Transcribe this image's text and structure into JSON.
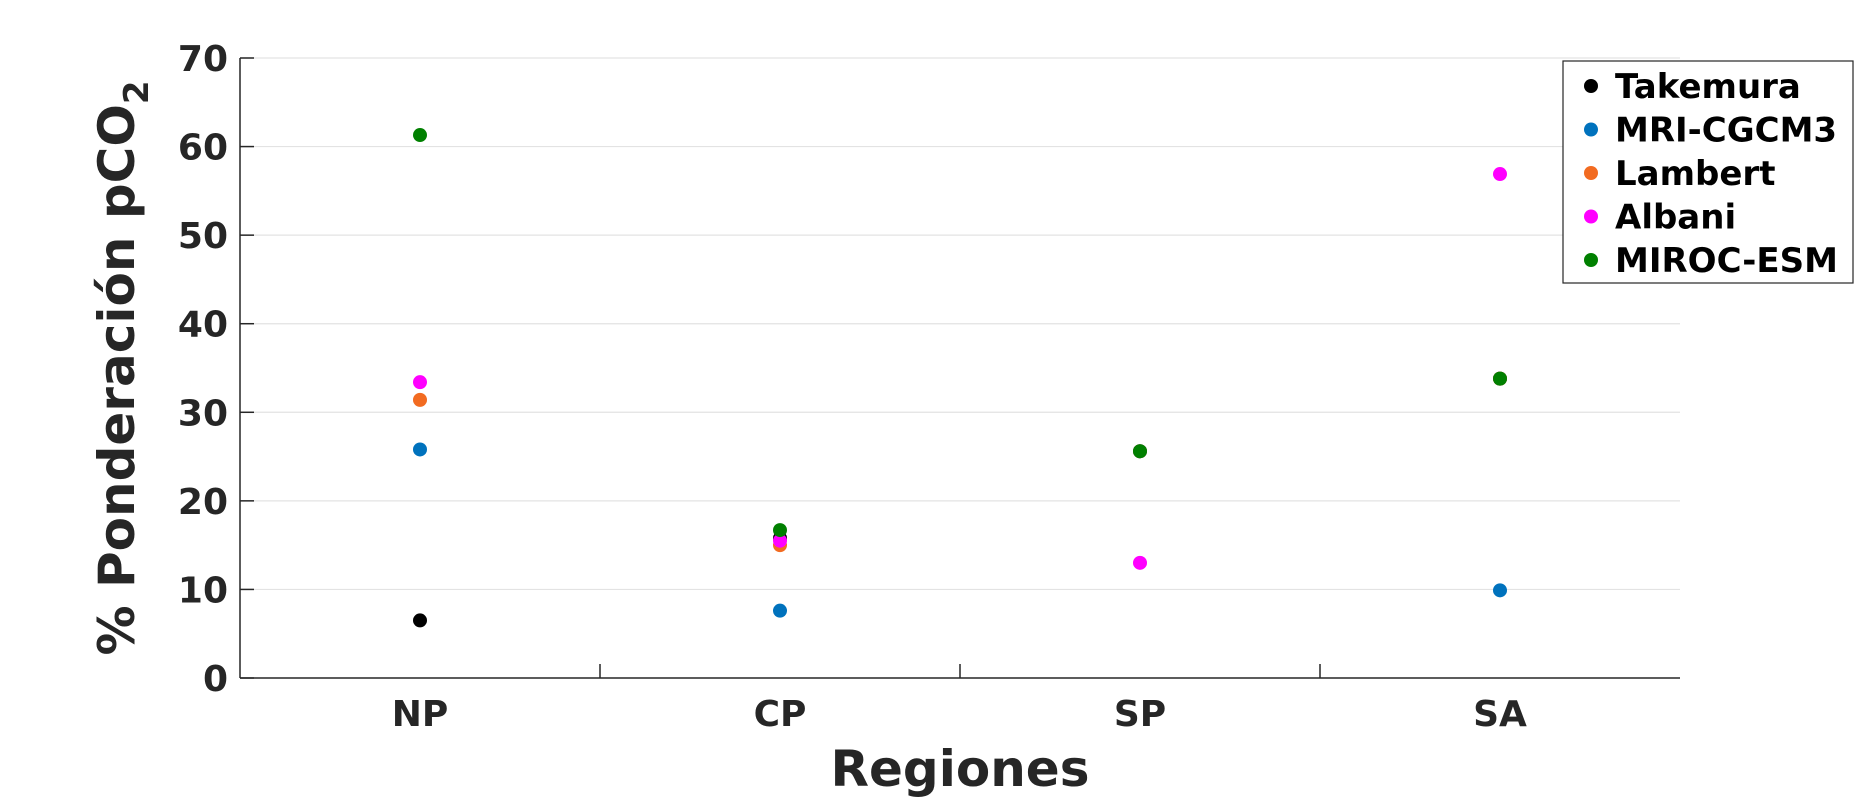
{
  "chart_data": {
    "type": "scatter",
    "title": "",
    "xlabel": "Regiones",
    "ylabel_main": "% Ponderación pCO",
    "ylabel_subscript": "2",
    "categories": [
      "NP",
      "CP",
      "SP",
      "SA"
    ],
    "ylim": [
      0,
      70
    ],
    "yticks": [
      0,
      10,
      20,
      30,
      40,
      50,
      60,
      70
    ],
    "ytick_labels": [
      "0",
      "10",
      "20",
      "30",
      "40",
      "50",
      "60",
      "70"
    ],
    "grid": "horizontal",
    "legend_position": "top-right",
    "series": [
      {
        "name": "Takemura",
        "color": "#000000",
        "values": [
          6.5,
          15.8,
          25.6,
          33.8
        ]
      },
      {
        "name": "MRI-CGCM3",
        "color": "#0072BD",
        "values": [
          25.8,
          7.6,
          25.6,
          9.9
        ]
      },
      {
        "name": "Lambert",
        "color": "#F26B21",
        "values": [
          31.4,
          15.0,
          25.6,
          33.8
        ]
      },
      {
        "name": "Albani",
        "color": "#FF00FF",
        "values": [
          33.4,
          15.5,
          13.0,
          56.9
        ]
      },
      {
        "name": "MIROC-ESM",
        "color": "#008000",
        "values": [
          61.3,
          16.7,
          25.6,
          33.8
        ]
      }
    ]
  }
}
